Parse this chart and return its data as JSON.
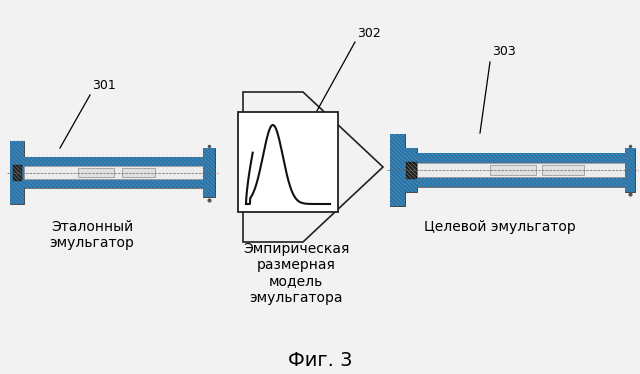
{
  "title": "Фиг. 3",
  "bg_color": "#f2f2f2",
  "label_301": "301",
  "label_302": "302",
  "label_303": "303",
  "text_left": "Эталонный\nэмульгатор",
  "text_center": "Эмпирическая\nразмерная\nмодель\nэмульгатора",
  "text_right": "Целевой эмульгатор",
  "font_size_labels": 9,
  "font_size_title": 14,
  "font_size_text": 10
}
